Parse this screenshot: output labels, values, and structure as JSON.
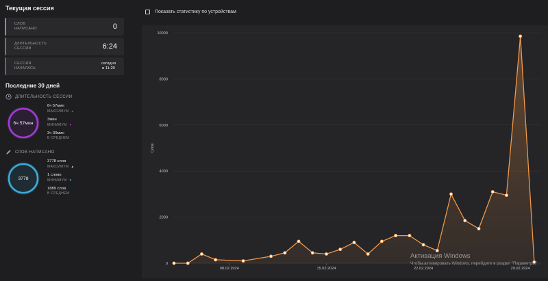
{
  "current_session": {
    "title": "Текущая сессия",
    "cards": [
      {
        "label_1": "СЛОВ",
        "label_2": "НАПИСАНО",
        "value": "0",
        "color": "#3fa9d6"
      },
      {
        "label_1": "ДЛИТЕЛЬНОСТЬ",
        "label_2": "СЕССИИ",
        "value": "6:24",
        "color": "#d04a5c"
      },
      {
        "label_1": "СЕССИЯ",
        "label_2": "НАЧАЛАСЬ",
        "value_1": "сегодня",
        "value_2": "в 11:20",
        "color": "#8b3fd1"
      }
    ]
  },
  "last30": {
    "title": "Последние 30 дней",
    "duration": {
      "heading": "ДЛИТЕЛЬНОСТЬ СЕССИИ",
      "icon": "clock-icon",
      "ring_value": "6ч 57мин",
      "ring_color": "#a23ad6",
      "ring_fill": 1.0,
      "items": [
        {
          "value": "6ч 57мин",
          "key": "МАКСИМУМ",
          "arrow": "▲",
          "arrow_color": "#a23ad6"
        },
        {
          "value": "3мин",
          "key": "МИНИМУМ",
          "arrow": "▼",
          "arrow_color": "#a23ad6"
        },
        {
          "value": "3ч 30мин",
          "key": "В СРЕДНЕМ",
          "arrow": "",
          "arrow_color": ""
        }
      ]
    },
    "words": {
      "heading": "СЛОВ НАПИСАНО",
      "icon": "pencil-icon",
      "ring_value": "3778",
      "ring_color": "#3fa9d6",
      "ring_fill": 1.0,
      "items": [
        {
          "value": "3778 слов",
          "key": "МАКСИМУМ",
          "arrow": "▲",
          "arrow_color": "#e0e0e0"
        },
        {
          "value": "1 слово",
          "key": "МИНИМУМ",
          "arrow": "▼",
          "arrow_color": "#3fa9d6"
        },
        {
          "value": "1889 слов",
          "key": "В СРЕДНЕМ",
          "arrow": "",
          "arrow_color": ""
        }
      ]
    }
  },
  "toggle": {
    "label": "Показать статистику по устройствам",
    "checked": false
  },
  "watermark": {
    "line1": "Активация Windows",
    "line2": "Чтобы активировать Windows, перейдите в раздел \"Параметры\"."
  },
  "chart_data": {
    "type": "area",
    "ylabel": "Слов",
    "xlabel": "",
    "ylim": [
      0,
      10000
    ],
    "yticks": [
      0,
      2000,
      4000,
      6000,
      8000,
      10000
    ],
    "xlim": [
      0,
      26.5
    ],
    "xticks": [
      {
        "x": 4,
        "label": "08.02.2024"
      },
      {
        "x": 11,
        "label": "15.02.2024"
      },
      {
        "x": 18,
        "label": "22.02.2024"
      },
      {
        "x": 25,
        "label": "29.02.2024"
      }
    ],
    "grid": "horizontal",
    "line_color": "#f2984a",
    "x": [
      0,
      1,
      2,
      3,
      5,
      7,
      8,
      9,
      10,
      11,
      12,
      13,
      14,
      15,
      16,
      17,
      18,
      19,
      20,
      21,
      22,
      23,
      24,
      25,
      26
    ],
    "values": [
      0,
      0,
      400,
      150,
      100,
      300,
      450,
      950,
      450,
      400,
      600,
      900,
      400,
      950,
      1200,
      1200,
      800,
      550,
      3000,
      1850,
      1500,
      3100,
      2950,
      9850,
      50
    ]
  }
}
